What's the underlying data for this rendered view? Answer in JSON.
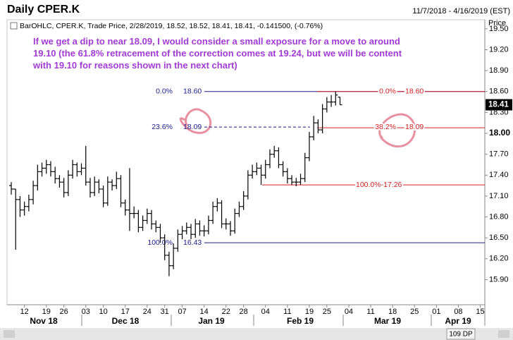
{
  "chart_data": {
    "type": "ohlc",
    "title": "Daily CPER.K",
    "date_range": "11/7/2018 - 4/16/2019 (EST)",
    "info": "BarOHLC, CPER.K, Trade Price, 2/28/2019, 18.52, 18.52, 18.41, 18.41, -0.141500, (-0.76%)",
    "annotation": [
      "If we get a dip to near 18.09, I would consider a small exposure for a move to around",
      "19.10 (the 61.8% retracement of the correction comes at 19.24, but we will be content",
      "with 19.10 for reasons shown in the next chart)"
    ],
    "y_axis_label": "Price",
    "last_price": 18.41,
    "footer": "109 DP",
    "months": [
      "Nov 18",
      "Dec 18",
      "Jan 19",
      "Feb 19",
      "Mar 19",
      "Apr 19"
    ],
    "color": "#000000",
    "categories": [
      null,
      null,
      null,
      "12",
      null,
      null,
      null,
      null,
      "19",
      null,
      null,
      null,
      "26",
      null,
      null,
      null,
      null,
      "03",
      null,
      null,
      null,
      "10",
      null,
      null,
      null,
      null,
      "17",
      null,
      null,
      null,
      null,
      "24",
      null,
      null,
      null,
      "31",
      null,
      null,
      null,
      "07",
      null,
      null,
      null,
      null,
      "14",
      null,
      null,
      null,
      null,
      "22",
      null,
      null,
      null,
      "28",
      null,
      null,
      null,
      null,
      "04",
      null,
      null,
      null,
      null,
      "11",
      null,
      null,
      null,
      null,
      "19",
      null,
      null,
      null,
      "25",
      null,
      null,
      null,
      null,
      "04",
      null,
      null,
      null,
      null,
      "11",
      null,
      null,
      null,
      null,
      "18",
      null,
      null,
      null,
      null,
      "25",
      null,
      null,
      null,
      null,
      "01",
      null,
      null,
      null,
      null,
      "08",
      null,
      null,
      null,
      null,
      "15",
      null
    ],
    "open": [
      17.25,
      17.2,
      17.05,
      16.9,
      16.95,
      17.05,
      17.25,
      17.45,
      17.5,
      17.55,
      17.45,
      17.35,
      17.3,
      17.15,
      17.4,
      17.55,
      17.45,
      17.5,
      17.3,
      17.15,
      17.3,
      17.2,
      17.0,
      17.3,
      17.25,
      17.35,
      17.0,
      16.9,
      16.85,
      16.85,
      16.65,
      16.75,
      16.85,
      16.7,
      16.65,
      16.5,
      16.25,
      16.1,
      16.35,
      16.55,
      16.6,
      16.65,
      16.55,
      16.7,
      16.6,
      16.6,
      16.75,
      16.95,
      17.0,
      16.7,
      16.7,
      16.6,
      16.85,
      16.95,
      17.1,
      17.4,
      17.45,
      17.5,
      17.4,
      17.55,
      17.7,
      17.75,
      17.55,
      17.45,
      17.35,
      17.3,
      17.3,
      17.35,
      17.65,
      17.95,
      18.15,
      18.05,
      18.35,
      18.45,
      18.45,
      18.52,
      null,
      null,
      null,
      null,
      null,
      null,
      null,
      null,
      null,
      null,
      null,
      null,
      null,
      null,
      null,
      null,
      null,
      null,
      null,
      null,
      null,
      null,
      null,
      null,
      null,
      null,
      null,
      null,
      null,
      null,
      null,
      null,
      null
    ],
    "high": [
      17.3,
      17.2,
      17.1,
      17.02,
      17.12,
      17.32,
      17.55,
      17.58,
      17.62,
      17.6,
      17.52,
      17.4,
      17.36,
      17.47,
      17.62,
      17.58,
      17.57,
      17.82,
      17.36,
      17.38,
      17.34,
      17.25,
      17.38,
      17.34,
      17.45,
      17.4,
      17.05,
      17.5,
      16.95,
      16.9,
      16.82,
      16.92,
      16.9,
      16.75,
      16.7,
      16.55,
      16.3,
      16.42,
      16.62,
      16.67,
      16.72,
      16.7,
      16.77,
      16.75,
      16.68,
      16.82,
      17.02,
      17.07,
      17.04,
      16.78,
      16.74,
      16.92,
      17.02,
      17.17,
      17.47,
      17.55,
      17.58,
      17.55,
      17.62,
      17.77,
      17.82,
      17.8,
      17.6,
      17.5,
      17.4,
      17.36,
      17.42,
      17.72,
      18.02,
      18.25,
      18.2,
      18.42,
      18.52,
      18.55,
      18.6,
      18.52,
      null,
      null,
      null,
      null,
      null,
      null,
      null,
      null,
      null,
      null,
      null,
      null,
      null,
      null,
      null,
      null,
      null,
      null,
      null,
      null,
      null,
      null,
      null,
      null,
      null,
      null,
      null,
      null,
      null,
      null,
      null,
      null,
      null
    ],
    "low": [
      17.12,
      16.33,
      16.8,
      16.82,
      16.88,
      16.98,
      17.18,
      17.38,
      17.42,
      17.38,
      17.28,
      17.22,
      17.08,
      17.1,
      17.35,
      17.38,
      17.4,
      17.25,
      17.08,
      17.1,
      17.14,
      16.94,
      16.96,
      17.18,
      17.2,
      16.94,
      16.82,
      16.6,
      16.78,
      16.58,
      16.6,
      16.7,
      16.62,
      16.58,
      16.43,
      16.18,
      15.95,
      16.05,
      16.3,
      16.48,
      16.55,
      16.48,
      16.5,
      16.53,
      16.52,
      16.55,
      16.7,
      16.88,
      16.64,
      16.62,
      16.53,
      16.56,
      16.8,
      16.9,
      17.05,
      17.35,
      17.4,
      17.26,
      17.35,
      17.5,
      17.65,
      17.5,
      17.38,
      17.28,
      17.26,
      17.24,
      17.26,
      17.3,
      17.6,
      17.9,
      18.0,
      18.0,
      18.3,
      18.38,
      18.4,
      18.41,
      null,
      null,
      null,
      null,
      null,
      null,
      null,
      null,
      null,
      null,
      null,
      null,
      null,
      null,
      null,
      null,
      null,
      null,
      null,
      null,
      null,
      null,
      null,
      null,
      null,
      null,
      null,
      null,
      null,
      null,
      null,
      null,
      null
    ],
    "close": [
      17.2,
      17.05,
      16.9,
      16.95,
      17.05,
      17.25,
      17.45,
      17.5,
      17.55,
      17.45,
      17.35,
      17.3,
      17.15,
      17.4,
      17.55,
      17.45,
      17.5,
      17.3,
      17.15,
      17.3,
      17.2,
      17.0,
      17.3,
      17.25,
      17.35,
      17.0,
      16.9,
      16.85,
      16.85,
      16.65,
      16.75,
      16.85,
      16.7,
      16.65,
      16.5,
      16.25,
      16.1,
      16.35,
      16.55,
      16.6,
      16.65,
      16.55,
      16.7,
      16.6,
      16.6,
      16.75,
      16.95,
      17.0,
      16.7,
      16.7,
      16.6,
      16.85,
      16.95,
      17.1,
      17.4,
      17.45,
      17.5,
      17.4,
      17.55,
      17.7,
      17.75,
      17.55,
      17.45,
      17.35,
      17.3,
      17.3,
      17.35,
      17.65,
      17.95,
      18.15,
      18.05,
      18.35,
      18.45,
      18.45,
      18.55,
      18.41,
      null,
      null,
      null,
      null,
      null,
      null,
      null,
      null,
      null,
      null,
      null,
      null,
      null,
      null,
      null,
      null,
      null,
      null,
      null,
      null,
      null,
      null,
      null,
      null,
      null,
      null,
      null,
      null,
      null,
      null,
      null,
      null,
      null
    ],
    "ylim": [
      15.54,
      19.61
    ],
    "yticks": [
      {
        "value": 15.9,
        "label": "15.90"
      },
      {
        "value": 16.2,
        "label": "16.20"
      },
      {
        "value": 16.5,
        "label": "16.50"
      },
      {
        "value": 16.8,
        "label": "16.80"
      },
      {
        "value": 17.1,
        "label": "17.10"
      },
      {
        "value": 17.4,
        "label": "17.40"
      },
      {
        "value": 17.7,
        "label": "17.70"
      },
      {
        "value": 18.0,
        "label": "18.00"
      },
      {
        "value": 18.3,
        "label": "18.30"
      },
      {
        "value": 18.6,
        "label": "18.60"
      },
      {
        "value": 18.9,
        "label": "18.90"
      },
      {
        "value": 19.2,
        "label": "19.20"
      },
      {
        "value": 19.5,
        "label": "19.50"
      }
    ],
    "fib_blue": {
      "color": "#1a1a8c",
      "levels": [
        {
          "pct": "0.0%",
          "price": {
            "value": 18.6,
            "label": "18.60"
          }
        },
        {
          "pct": "23.6%",
          "price": {
            "value": 18.09,
            "label": "18.09"
          }
        },
        {
          "pct": "100.0%",
          "price": {
            "value": 16.43,
            "label": "16.43"
          }
        }
      ]
    },
    "fib_red": {
      "color": "#d42020",
      "levels": [
        {
          "pct": "0.0%",
          "price": {
            "value": 18.6,
            "label": "18.60"
          }
        },
        {
          "pct": "38.2%",
          "price": {
            "value": 18.09,
            "label": "18.09"
          }
        },
        {
          "text": "100.0%-17.26",
          "value": 17.26
        }
      ]
    }
  }
}
